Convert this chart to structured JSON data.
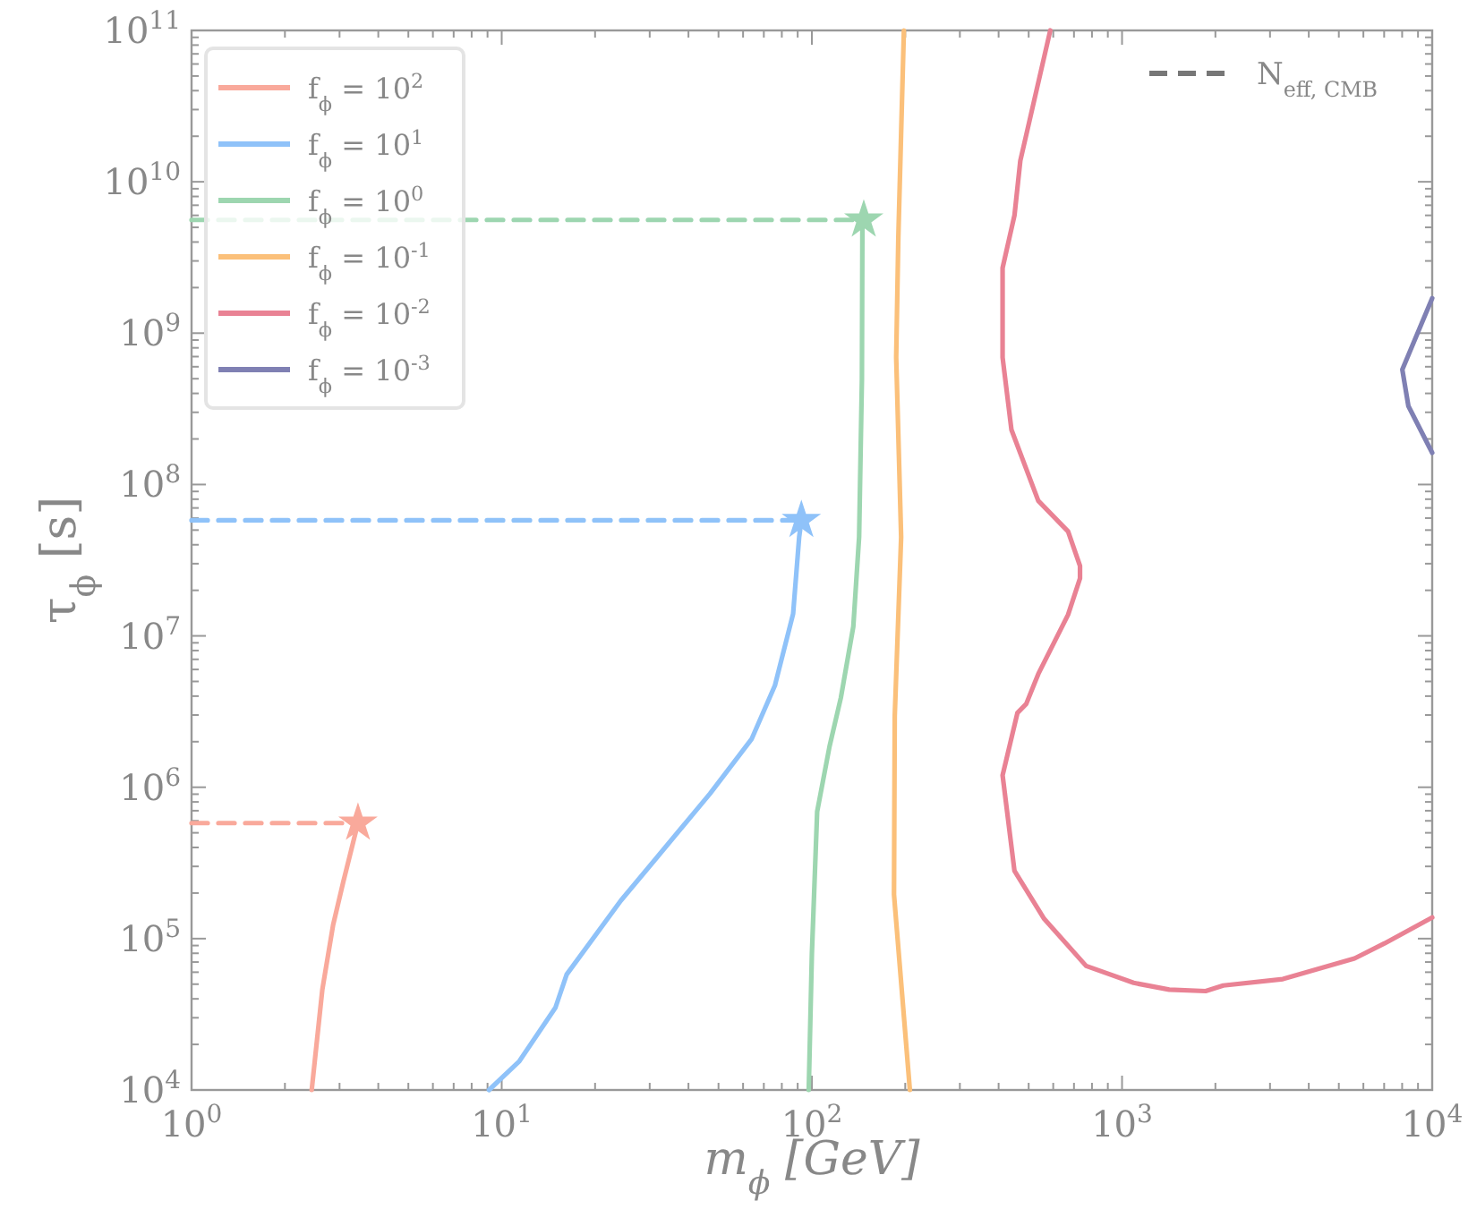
{
  "chart_data": {
    "type": "line",
    "xlabel": "m$_{ϕ}$  [GeV]",
    "ylabel": "τ$_{ϕ}$  [s]",
    "log": "xy",
    "grid": false,
    "legend": "top left",
    "marker": "none",
    "xlim": [
      1,
      10000
    ],
    "xticks": [
      {
        "value": 1,
        "label": "10$^{0}$"
      },
      {
        "value": 10,
        "label": "10$^{1}$"
      },
      {
        "value": 100,
        "label": "10$^{2}$"
      },
      {
        "value": 1000,
        "label": "10$^{3}$"
      },
      {
        "value": 10000,
        "label": "10$^{4}$"
      }
    ],
    "ylim": [
      10000,
      100000000000
    ],
    "yticks": [
      {
        "value": 10000,
        "label": "10$^{4}$"
      },
      {
        "value": 100000,
        "label": "10$^{5}$"
      },
      {
        "value": 1000000,
        "label": "10$^{6}$"
      },
      {
        "value": 10000000,
        "label": "10$^{7}$"
      },
      {
        "value": 100000000,
        "label": "10$^{8}$"
      },
      {
        "value": 1000000000,
        "label": "10$^{9}$"
      },
      {
        "value": 10000000000,
        "label": "10$^{10}$"
      },
      {
        "value": 100000000000,
        "label": "10$^{11}$"
      }
    ],
    "annotations": [
      "N$_{eff, CMB}$"
    ],
    "series": [
      {
        "name": "f$_{ϕ}$ = 10$^{2}$",
        "color": "#f9a99b",
        "x": [
          2.44,
          2.64,
          2.86,
          3.08,
          3.44
        ],
        "values": [
          10000,
          46000,
          123000,
          234000,
          580000
        ]
      },
      {
        "name": "f$_{ϕ}$ = 10$^{1}$",
        "color": "#8fc2f9",
        "x": [
          9.1,
          11.4,
          14.9,
          16.2,
          24.2,
          31.5,
          47,
          64,
          76,
          87,
          91,
          92.5
        ],
        "values": [
          10000,
          15500,
          35000,
          58000,
          178000,
          340000,
          910000,
          2090000,
          4700000,
          14000000,
          45000000,
          58000000
        ]
      },
      {
        "name": "f$_{ϕ}$ = 10$^{0}$",
        "color": "#9dd6b0",
        "x": [
          97.7,
          100,
          104,
          114,
          124,
          136,
          142,
          145,
          145.5,
          147
        ],
        "values": [
          10000,
          79000,
          690000,
          1860000,
          3900000,
          11500000,
          45000000,
          500000000,
          5000000000,
          5600000000
        ]
      },
      {
        "name": "f$_{ϕ}$ = 10$^{-1}$",
        "color": "#fbc07a",
        "x": [
          207,
          184,
          185,
          194,
          187,
          190,
          198
        ],
        "values": [
          10000,
          195000,
          2950000,
          45000000,
          690000000,
          4300000000,
          100000000000
        ]
      },
      {
        "name": "f$_{ϕ}$ = 10$^{-2}$",
        "color": "#e98294",
        "x": [
          10000,
          7020,
          5620,
          3300,
          2120,
          1860,
          1420,
          1090,
          766,
          561,
          450,
          412,
          460,
          491,
          537,
          670,
          732,
          732,
          670,
          537,
          440,
          412,
          412,
          450,
          470,
          587
        ],
        "values": [
          138000,
          93000,
          74000,
          54000,
          49000,
          45000,
          46000,
          51000,
          66000,
          135000,
          280000,
          1200000,
          3100000,
          3550000,
          5600000,
          13800000,
          24000000,
          29000000,
          49000000,
          78000000,
          230000000,
          690000000,
          2700000000,
          6000000000,
          13800000000,
          100000000000
        ]
      },
      {
        "name": "f$_{ϕ}$ = 10$^{-3}$",
        "color": "#7f80b3",
        "x": [
          10000,
          8010,
          8380,
          10000
        ],
        "values": [
          1700000000,
          575000000,
          330000000,
          162000000
        ]
      },
      {
        "type": "line",
        "line_style": "dashed",
        "color": "#f9a99b",
        "x": [
          1,
          3.44
        ],
        "values": [
          580000,
          580000
        ]
      },
      {
        "type": "line",
        "line_style": "dashed",
        "color": "#8fc2f9",
        "x": [
          1,
          92.5
        ],
        "values": [
          58000000,
          58000000
        ]
      },
      {
        "type": "line",
        "line_style": "dashed",
        "color": "#9dd6b0",
        "x": [
          1,
          147
        ],
        "values": [
          5600000000,
          5600000000
        ]
      },
      {
        "type": "scatter",
        "marker": "star",
        "color": "#f9a99b",
        "x": [
          3.44
        ],
        "values": [
          580000
        ]
      },
      {
        "type": "scatter",
        "marker": "star",
        "color": "#8fc2f9",
        "x": [
          92.5
        ],
        "values": [
          58000000
        ]
      },
      {
        "type": "scatter",
        "marker": "star",
        "color": "#9dd6b0",
        "x": [
          147
        ],
        "values": [
          5600000000
        ]
      }
    ]
  }
}
